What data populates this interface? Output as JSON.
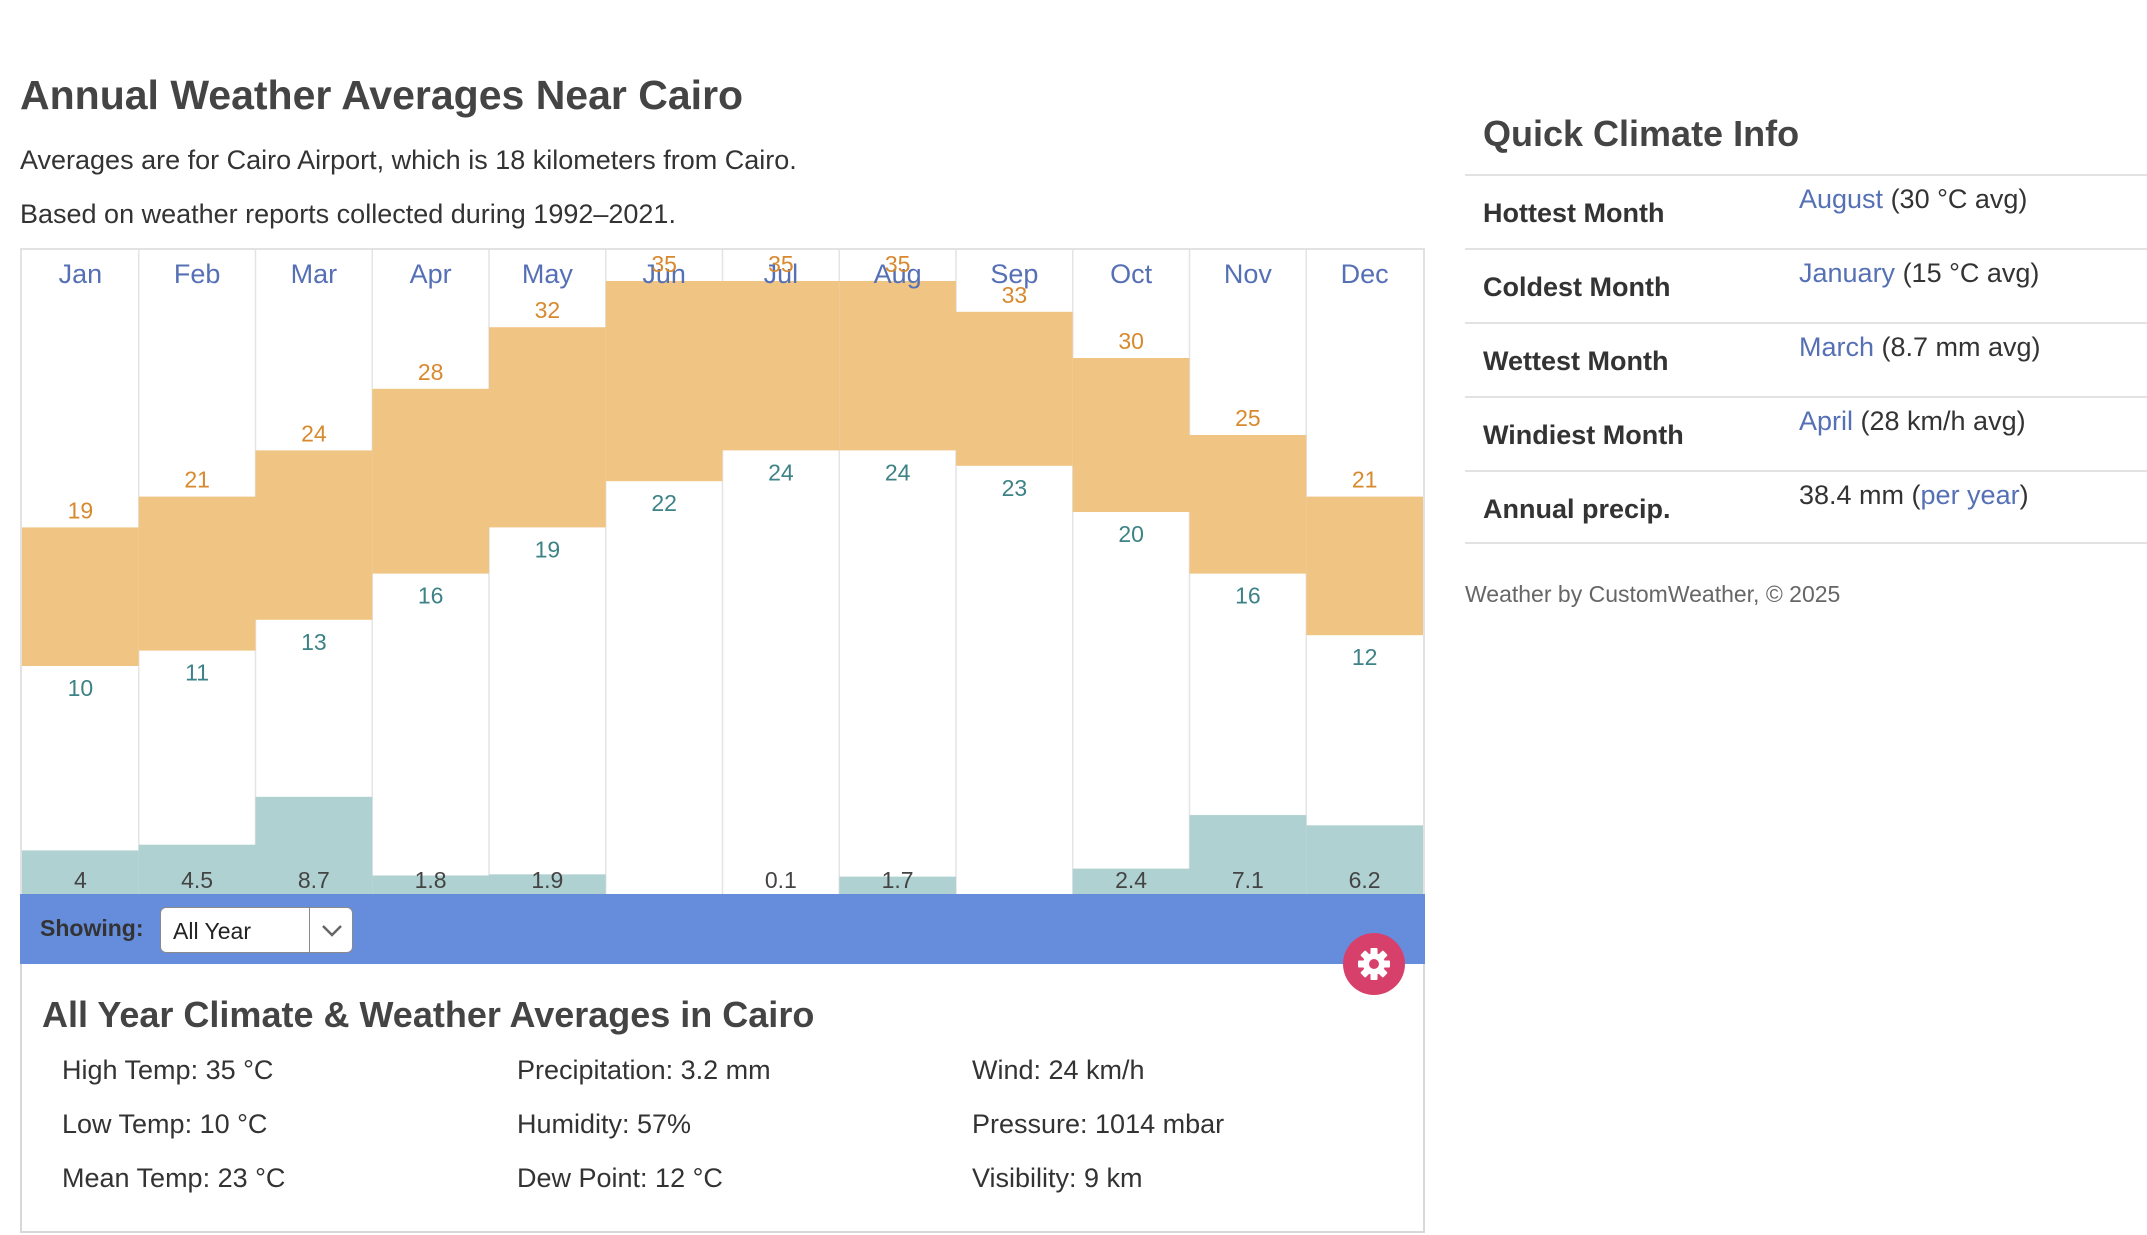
{
  "page": {
    "title": "Annual Weather Averages Near Cairo",
    "intro_1": "Averages are for Cairo Airport, which is 18 kilometers from Cairo.",
    "intro_2": "Based on weather reports collected during 1992–2021."
  },
  "colors": {
    "temp_bar": "#f0c584",
    "precip_bar": "#b0d1d1",
    "high_label": "#d8892e",
    "low_label": "#3d8286",
    "month_label": "#5570b4",
    "showing_bar": "#658ddc",
    "settings_button": "#d8406c"
  },
  "chart_data": {
    "type": "bar",
    "categories": [
      "Jan",
      "Feb",
      "Mar",
      "Apr",
      "May",
      "Jun",
      "Jul",
      "Aug",
      "Sep",
      "Oct",
      "Nov",
      "Dec"
    ],
    "series": [
      {
        "name": "High",
        "values": [
          19,
          21,
          24,
          28,
          32,
          35,
          35,
          35,
          33,
          30,
          25,
          21
        ]
      },
      {
        "name": "Low",
        "values": [
          10,
          11,
          13,
          16,
          19,
          22,
          24,
          24,
          23,
          20,
          16,
          12
        ]
      },
      {
        "name": "Precipitation",
        "values": [
          4,
          4.5,
          8.7,
          1.8,
          1.9,
          0,
          0.1,
          1.7,
          0,
          2.4,
          7.1,
          6.2
        ]
      }
    ],
    "labels": {
      "high": [
        "19",
        "21",
        "24",
        "28",
        "32",
        "35",
        "35",
        "35",
        "33",
        "30",
        "25",
        "21"
      ],
      "low": [
        "10",
        "11",
        "13",
        "16",
        "19",
        "22",
        "24",
        "24",
        "23",
        "20",
        "16",
        "12"
      ],
      "precip": [
        "4",
        "4.5",
        "8.7",
        "1.8",
        "1.9",
        "",
        "0.1",
        "1.7",
        "",
        "2.4",
        "7.1",
        "6.2"
      ]
    }
  },
  "filter": {
    "label": "Showing:",
    "value": "All Year"
  },
  "averages": {
    "title": "All Year Climate & Weather Averages in Cairo",
    "col1": [
      "High Temp: 35 °C",
      "Low Temp: 10 °C",
      "Mean Temp: 23 °C"
    ],
    "col2": [
      "Precipitation: 3.2 mm",
      "Humidity: 57%",
      "Dew Point: 12 °C"
    ],
    "col3": [
      "Wind: 24 km/h",
      "Pressure: 1014 mbar",
      "Visibility: 9 km"
    ]
  },
  "quick": {
    "title": "Quick Climate Info",
    "rows": [
      {
        "label": "Hottest Month",
        "link": "August",
        "value": " (30 °C avg)"
      },
      {
        "label": "Coldest Month",
        "link": "January",
        "value": " (15 °C avg)"
      },
      {
        "label": "Wettest Month",
        "link": "March",
        "value": " (8.7 mm avg)"
      },
      {
        "label": "Windiest Month",
        "link": "April",
        "value": " (28 km/h avg)"
      }
    ],
    "annual": {
      "label": "Annual precip.",
      "prefix": "38.4 mm (",
      "link": "per year",
      "suffix": ")"
    }
  },
  "footer": {
    "credit": "Weather by CustomWeather, © 2025"
  }
}
